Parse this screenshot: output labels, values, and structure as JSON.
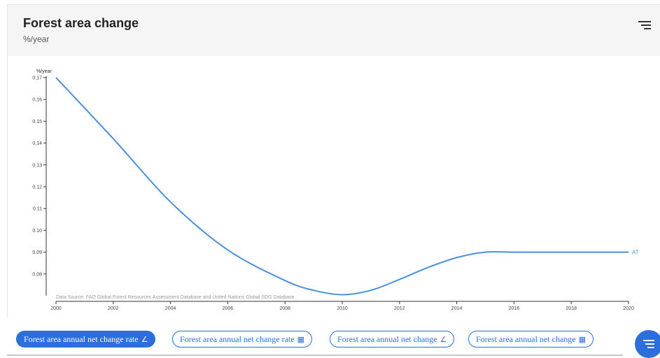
{
  "header": {
    "title": "Forest area change",
    "subtitle": "%/year",
    "menu_icon": "hamburger-filter-icon"
  },
  "chart_data": {
    "type": "line",
    "title": "",
    "xlabel": "",
    "ylabel": "%/year",
    "x_ticks": [
      "2000",
      "2002",
      "2004",
      "2006",
      "2008",
      "2010",
      "2012",
      "2014",
      "2016",
      "2018",
      "2020"
    ],
    "y_ticks": [
      "0.08",
      "0.09",
      "0.10",
      "0.11",
      "0.12",
      "0.13",
      "0.14",
      "0.15",
      "0.16",
      "0.17"
    ],
    "xlim": [
      2000,
      2020
    ],
    "ylim": [
      0.07,
      0.17
    ],
    "series": [
      {
        "name": "AT",
        "color": "#4a90d9",
        "x": [
          2000,
          2002,
          2004,
          2006,
          2008,
          2009,
          2010,
          2011,
          2012,
          2013,
          2014,
          2015,
          2016,
          2018,
          2020
        ],
        "y": [
          0.17,
          0.142,
          0.113,
          0.091,
          0.077,
          0.0725,
          0.0705,
          0.0725,
          0.0775,
          0.083,
          0.0875,
          0.09,
          0.09,
          0.09,
          0.09
        ]
      }
    ],
    "source_note": "Data Source: FAO Global Forest Resources Assessment Database and United Nations Global SDG Database",
    "grid": false,
    "legend": "end-of-line label"
  },
  "tabs": [
    {
      "label": "Forest area annual net change rate",
      "icon": "∠",
      "icon_name": "line-chart-icon",
      "active": true
    },
    {
      "label": "Forest area annual net change rate",
      "icon": "▦",
      "icon_name": "table-icon",
      "active": false
    },
    {
      "label": "Forest area annual net change",
      "icon": "∠",
      "icon_name": "line-chart-icon",
      "active": false
    },
    {
      "label": "Forest area annual net change",
      "icon": "▦",
      "icon_name": "table-icon",
      "active": false
    }
  ],
  "fab": {
    "icon": "filter-menu-icon",
    "color": "#2a6fdb"
  }
}
